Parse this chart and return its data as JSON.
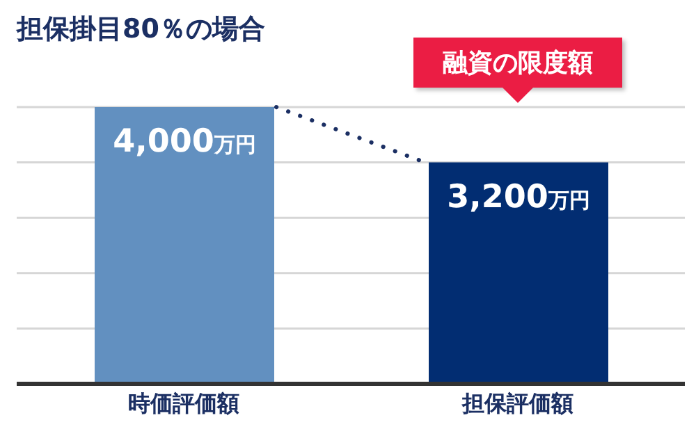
{
  "chart_data": {
    "type": "bar",
    "title": "担保掛目80％の場合",
    "categories": [
      "時価評価額",
      "担保評価額"
    ],
    "values": [
      4000,
      3200
    ],
    "colors": [
      "#6290c0",
      "#022d72"
    ],
    "value_labels": [
      "4,000万円",
      "3,200万円"
    ],
    "ylim": [
      0,
      4000
    ],
    "yticks": [
      {
        "value": 0,
        "label": null
      },
      {
        "value": 800,
        "label": null
      },
      {
        "value": 1600,
        "label": null
      },
      {
        "value": 2400,
        "label": null
      },
      {
        "value": 3200,
        "label": null
      },
      {
        "value": 4000,
        "label": null
      }
    ],
    "tick_labels": "x",
    "grid": "y",
    "annotations": [
      "融資の限度額"
    ]
  }
}
